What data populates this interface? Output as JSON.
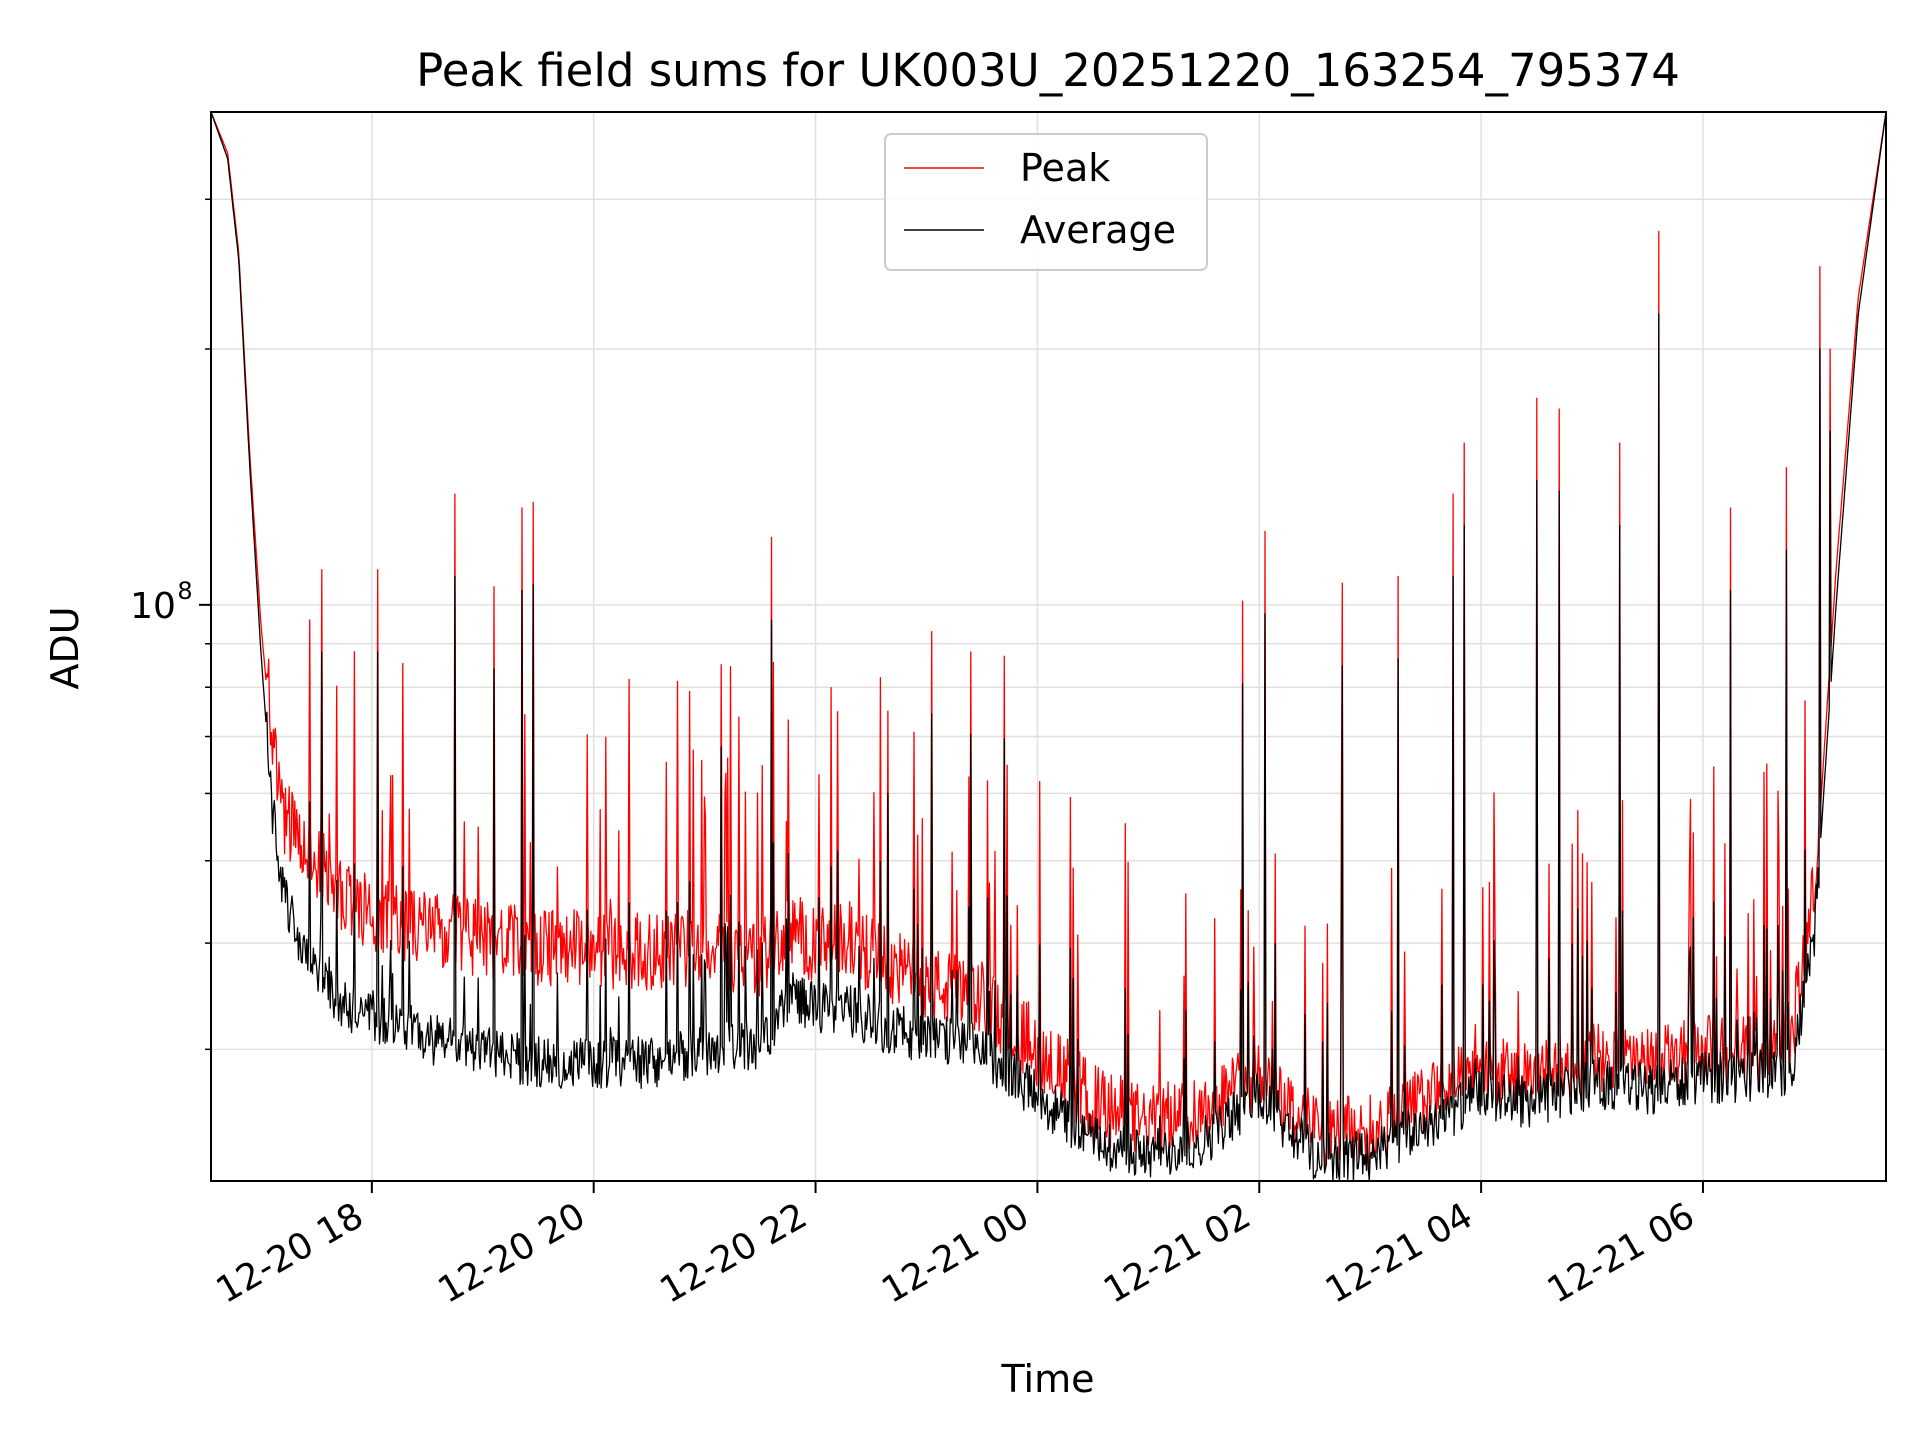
{
  "chart_data": {
    "type": "line",
    "title": "Peak field sums for UK003U_20251220_163254_795374",
    "xlabel": "Time",
    "ylabel": "ADU",
    "y_scale": "log",
    "ylim": [
      21000000,
      380000000
    ],
    "x_unit": "hours since 2025-12-20 00:00",
    "xlim": [
      16.55,
      31.65
    ],
    "x_ticks": [
      {
        "value": 18,
        "label": "12-20 18"
      },
      {
        "value": 20,
        "label": "12-20 20"
      },
      {
        "value": 22,
        "label": "12-20 22"
      },
      {
        "value": 24,
        "label": "12-21 00"
      },
      {
        "value": 26,
        "label": "12-21 02"
      },
      {
        "value": 28,
        "label": "12-21 04"
      },
      {
        "value": 30,
        "label": "12-21 06"
      }
    ],
    "y_major_ticks": [
      {
        "value": 100000000,
        "base": "10",
        "exp": "8"
      }
    ],
    "y_minor_ticks": [
      30000000,
      40000000,
      50000000,
      60000000,
      70000000,
      80000000,
      90000000,
      200000000,
      300000000
    ],
    "grid": true,
    "legend_position": "top-center",
    "series": [
      {
        "name": "Peak",
        "color": "#ff0000",
        "x": [
          16.55,
          16.7,
          16.8,
          16.9,
          17.0,
          17.1,
          17.2,
          17.35,
          17.5,
          17.75,
          18.0,
          18.5,
          19.0,
          19.5,
          20.0,
          20.5,
          21.0,
          21.5,
          21.8,
          22.0,
          22.3,
          22.6,
          23.0,
          23.5,
          24.0,
          24.5,
          25.0,
          25.5,
          26.0,
          26.5,
          27.0,
          27.5,
          28.0,
          28.5,
          29.0,
          29.5,
          30.0,
          30.5,
          30.8,
          31.0,
          31.2,
          31.4,
          31.65
        ],
        "y": [
          380000000,
          340000000,
          260000000,
          150000000,
          95000000,
          68000000,
          55000000,
          50000000,
          48000000,
          43000000,
          42000000,
          40000000,
          39000000,
          38000000,
          38000000,
          37500000,
          38000000,
          37000000,
          40000000,
          38000000,
          39000000,
          36500000,
          34500000,
          33000000,
          29000000,
          25000000,
          23500000,
          24500000,
          27000000,
          23000000,
          23000000,
          25000000,
          27000000,
          26500000,
          28000000,
          27500000,
          28500000,
          28500000,
          30000000,
          44000000,
          110000000,
          230000000,
          380000000
        ]
      },
      {
        "name": "Average",
        "color": "#000000",
        "x": [
          16.55,
          16.7,
          16.8,
          16.9,
          17.0,
          17.1,
          17.2,
          17.35,
          17.5,
          17.75,
          18.0,
          18.5,
          19.0,
          19.5,
          20.0,
          20.5,
          21.0,
          21.5,
          21.8,
          22.0,
          22.3,
          22.6,
          23.0,
          23.5,
          24.0,
          24.5,
          25.0,
          25.5,
          26.0,
          26.5,
          27.0,
          27.5,
          28.0,
          28.5,
          29.0,
          29.5,
          30.0,
          30.5,
          30.8,
          31.0,
          31.2,
          31.4,
          31.65
        ],
        "y": [
          380000000,
          335000000,
          255000000,
          145000000,
          88000000,
          58000000,
          46000000,
          40000000,
          37000000,
          34000000,
          33000000,
          31000000,
          30000000,
          29000000,
          29000000,
          29000000,
          30000000,
          30500000,
          35000000,
          33500000,
          33500000,
          32000000,
          31000000,
          30000000,
          26500000,
          23500000,
          22500000,
          23500000,
          26500000,
          22500000,
          22500000,
          24500000,
          26500000,
          26000000,
          27500000,
          27000000,
          27800000,
          28000000,
          28500000,
          40000000,
          100000000,
          220000000,
          380000000
        ]
      }
    ],
    "spikes": [
      {
        "x": 17.55,
        "y": 110000000
      },
      {
        "x": 18.05,
        "y": 110000000
      },
      {
        "x": 18.75,
        "y": 135000000
      },
      {
        "x": 19.1,
        "y": 105000000
      },
      {
        "x": 19.35,
        "y": 130000000
      },
      {
        "x": 19.45,
        "y": 132000000
      },
      {
        "x": 21.15,
        "y": 85000000
      },
      {
        "x": 21.6,
        "y": 120000000
      },
      {
        "x": 22.65,
        "y": 75000000
      },
      {
        "x": 23.05,
        "y": 93000000
      },
      {
        "x": 23.4,
        "y": 88000000
      },
      {
        "x": 23.7,
        "y": 87000000
      },
      {
        "x": 25.85,
        "y": 101000000
      },
      {
        "x": 26.05,
        "y": 122000000
      },
      {
        "x": 26.75,
        "y": 106000000
      },
      {
        "x": 27.25,
        "y": 108000000
      },
      {
        "x": 27.75,
        "y": 135000000
      },
      {
        "x": 27.85,
        "y": 155000000
      },
      {
        "x": 28.5,
        "y": 175000000
      },
      {
        "x": 28.7,
        "y": 170000000
      },
      {
        "x": 29.25,
        "y": 155000000
      },
      {
        "x": 29.6,
        "y": 275000000
      },
      {
        "x": 30.25,
        "y": 130000000
      },
      {
        "x": 30.75,
        "y": 145000000
      },
      {
        "x": 31.05,
        "y": 250000000
      },
      {
        "x": 31.15,
        "y": 200000000
      }
    ]
  }
}
